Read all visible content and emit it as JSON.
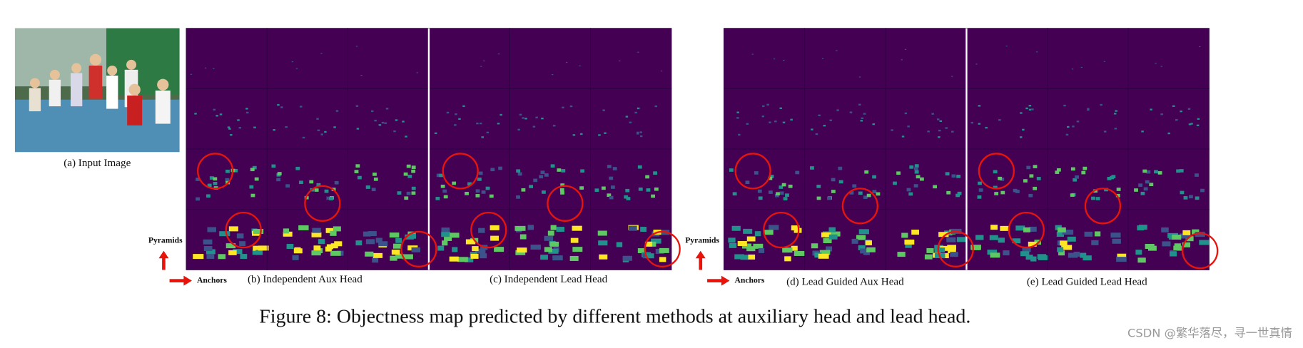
{
  "figure": {
    "input_label": "(a) Input Image",
    "pyramids": "Pyramids",
    "anchors": "Anchors",
    "panels": [
      "(b) Independent Aux Head",
      "(c) Independent Lead Head",
      "(d) Lead Guided Aux Head",
      "(e) Lead Guided Lead Head"
    ],
    "caption": "Figure 8: Objectness map predicted by different methods at auxiliary head and lead head.",
    "watermark": "CSDN @繁华落尽，寻一世真情"
  }
}
